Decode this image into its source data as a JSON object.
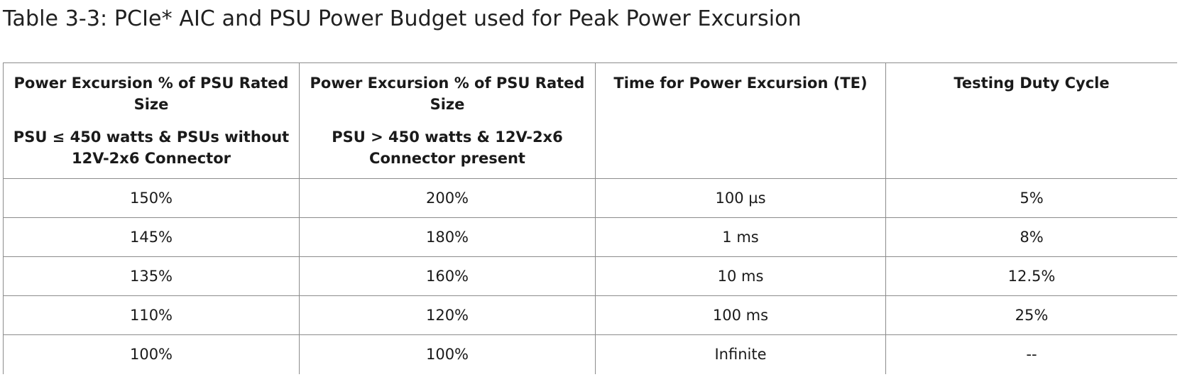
{
  "caption": "Table 3-3: PCIe* AIC and PSU Power Budget used for Peak Power Excursion",
  "headers": [
    {
      "main": "Power Excursion % of PSU Rated Size",
      "sub": "PSU ≤ 450 watts & PSUs without 12V-2x6 Connector"
    },
    {
      "main": "Power Excursion % of PSU Rated Size",
      "sub": "PSU > 450 watts & 12V-2x6 Connector present"
    },
    {
      "main": "Time for Power Excursion (TE)"
    },
    {
      "main": "Testing Duty Cycle"
    }
  ],
  "rows": [
    [
      "150%",
      "200%",
      "100 µs",
      "5%"
    ],
    [
      "145%",
      "180%",
      "1 ms",
      "8%"
    ],
    [
      "135%",
      "160%",
      "10 ms",
      "12.5%"
    ],
    [
      "110%",
      "120%",
      "100 ms",
      "25%"
    ],
    [
      "100%",
      "100%",
      "Infinite",
      "--"
    ]
  ]
}
